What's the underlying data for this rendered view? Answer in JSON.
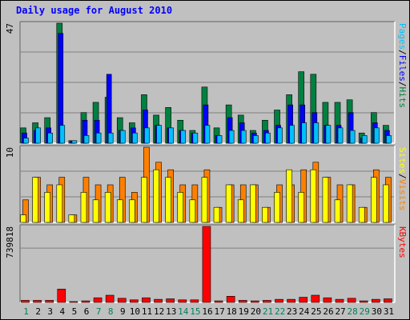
{
  "chart_data": {
    "type": "bar",
    "title": "Daily usage for August 2010",
    "categories": [
      "1",
      "2",
      "3",
      "4",
      "5",
      "6",
      "7",
      "8",
      "9",
      "10",
      "11",
      "12",
      "13",
      "14",
      "15",
      "16",
      "17",
      "18",
      "19",
      "20",
      "21",
      "22",
      "23",
      "24",
      "25",
      "26",
      "27",
      "28",
      "29",
      "30",
      "31"
    ],
    "weekend_days": [
      "1",
      "7",
      "8",
      "14",
      "15",
      "21",
      "22",
      "28",
      "29"
    ],
    "panels": [
      {
        "id": "hits_files_pages",
        "max_label": "47",
        "ylim": [
          0,
          47
        ],
        "grid": true,
        "legend": [
          "Pages",
          "Files",
          "Hits"
        ],
        "series": [
          {
            "name": "Hits",
            "color": "#008040",
            "values": [
              6,
              8,
              10,
              47,
              1,
              12,
              16,
              18,
              10,
              8,
              19,
              11,
              14,
              9,
              5,
              22,
              6,
              15,
              11,
              5,
              9,
              13,
              19,
              28,
              27,
              16,
              16,
              17,
              4,
              12,
              7
            ]
          },
          {
            "name": "Files",
            "color": "#0000ff",
            "values": [
              4,
              5,
              6,
              43,
              1,
              9,
              9,
              27,
              5,
              6,
              13,
              7,
              6,
              5,
              4,
              15,
              3,
              10,
              8,
              4,
              5,
              7,
              15,
              15,
              12,
              7,
              7,
              12,
              2,
              8,
              5
            ]
          },
          {
            "name": "Pages",
            "color": "#00c0ff",
            "values": [
              2,
              6,
              4,
              7,
              1,
              3,
              4,
              4,
              5,
              4,
              6,
              7,
              6,
              5,
              4,
              7,
              3,
              5,
              5,
              3,
              4,
              6,
              7,
              8,
              8,
              7,
              6,
              5,
              3,
              6,
              3
            ]
          }
        ]
      },
      {
        "id": "visits_sites",
        "max_label": "10",
        "ylim": [
          0,
          10
        ],
        "grid": true,
        "legend": [
          "Sites",
          "Visits"
        ],
        "series": [
          {
            "name": "Visits",
            "color": "#ff8000",
            "values": [
              3,
              6,
              5,
              6,
              1,
              6,
              5,
              5,
              6,
              4,
              10,
              8,
              7,
              5,
              5,
              7,
              2,
              5,
              5,
              5,
              2,
              5,
              5,
              7,
              8,
              6,
              5,
              5,
              2,
              7,
              6
            ]
          },
          {
            "name": "Sites",
            "color": "#ffff00",
            "values": [
              1,
              6,
              4,
              5,
              1,
              4,
              3,
              4,
              3,
              3,
              6,
              7,
              6,
              4,
              3,
              6,
              2,
              5,
              3,
              5,
              2,
              4,
              7,
              4,
              7,
              6,
              3,
              5,
              2,
              6,
              5
            ]
          }
        ]
      },
      {
        "id": "kbytes",
        "max_label": "739818",
        "ylim": [
          0,
          739818
        ],
        "grid": true,
        "legend": [
          "KBytes"
        ],
        "series": [
          {
            "name": "KBytes",
            "color": "#ff0000",
            "values": [
              20000,
              20000,
              20000,
              130000,
              8000,
              15000,
              45000,
              70000,
              40000,
              25000,
              45000,
              30000,
              35000,
              25000,
              25000,
              739818,
              15000,
              60000,
              20000,
              15000,
              20000,
              30000,
              30000,
              50000,
              70000,
              45000,
              30000,
              40000,
              15000,
              30000,
              35000
            ]
          }
        ]
      }
    ]
  },
  "colors": {
    "background": "#c0c0c0",
    "title": "#0000ff",
    "weekday_label": "#000000",
    "weekend_label": "#00805c",
    "panel_border_dark": "#808080",
    "panel_border_light": "#ffffff",
    "grid": "#808080"
  }
}
